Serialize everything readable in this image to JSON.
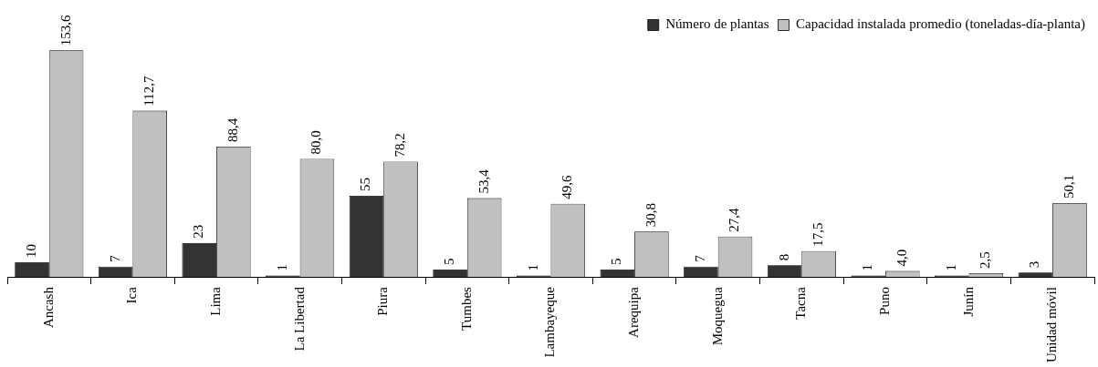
{
  "chart_data": {
    "type": "bar",
    "categories": [
      "Ancash",
      "Ica",
      "Lima",
      "La Libertad",
      "Piura",
      "Tumbes",
      "Lambayeque",
      "Arequipa",
      "Moquegua",
      "Tacna",
      "Puno",
      "Junín",
      "Unidad móvil"
    ],
    "series": [
      {
        "name": "Número de plantas",
        "color": "#333333",
        "values": [
          10,
          7,
          23,
          1,
          55,
          5,
          1,
          5,
          7,
          8,
          1,
          1,
          3
        ],
        "value_labels": [
          "10",
          "7",
          "23",
          "1",
          "55",
          "5",
          "1",
          "5",
          "7",
          "8",
          "1",
          "1",
          "3"
        ]
      },
      {
        "name": "Capacidad instalada promedio (toneladas-día-planta)",
        "color": "#c0c0c0",
        "values": [
          153.6,
          112.7,
          88.4,
          80.0,
          78.2,
          53.4,
          49.6,
          30.8,
          27.4,
          17.5,
          4.0,
          2.5,
          50.1
        ],
        "value_labels": [
          "153,6",
          "112,7",
          "88,4",
          "80,0",
          "78,2",
          "53,4",
          "49,6",
          "30,8",
          "27,4",
          "17,5",
          "4,0",
          "2,5",
          "50,1"
        ]
      }
    ],
    "legend": "top right",
    "grid": false
  }
}
